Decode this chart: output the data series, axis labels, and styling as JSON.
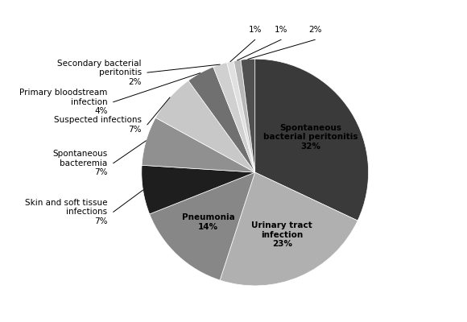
{
  "slices": [
    {
      "label": "Spontaneous\nbacterial peritonitis\n32%",
      "pct": 32,
      "color": "#3a3a3a",
      "inside": true
    },
    {
      "label": "Urinary tract\ninfection\n23%",
      "pct": 23,
      "color": "#b0b0b0",
      "inside": true
    },
    {
      "label": "Pneumonia\n14%",
      "pct": 14,
      "color": "#878787",
      "inside": true
    },
    {
      "label": "Skin and soft tissue\ninfections\n7%",
      "pct": 7,
      "color": "#1e1e1e",
      "inside": false
    },
    {
      "label": "Spontaneous\nbacteremia\n7%",
      "pct": 7,
      "color": "#909090",
      "inside": false
    },
    {
      "label": "Suspected infections\n7%",
      "pct": 7,
      "color": "#c8c8c8",
      "inside": false
    },
    {
      "label": "Primary bloodstream\ninfection\n4%",
      "pct": 4,
      "color": "#707070",
      "inside": false
    },
    {
      "label": "Secondary bacterial\nperitonitis\n2%",
      "pct": 2,
      "color": "#d0d0d0",
      "inside": false
    },
    {
      "label": "1%",
      "pct": 1,
      "color": "#e0e0e0",
      "inside": false
    },
    {
      "label": "1%",
      "pct": 1,
      "color": "#b8b8b8",
      "inside": false
    },
    {
      "label": "2%",
      "pct": 2,
      "color": "#505050",
      "inside": false
    }
  ],
  "startangle": 90,
  "figsize": [
    5.8,
    4.0
  ],
  "dpi": 100,
  "background_color": "#ffffff",
  "font_size": 7.5
}
